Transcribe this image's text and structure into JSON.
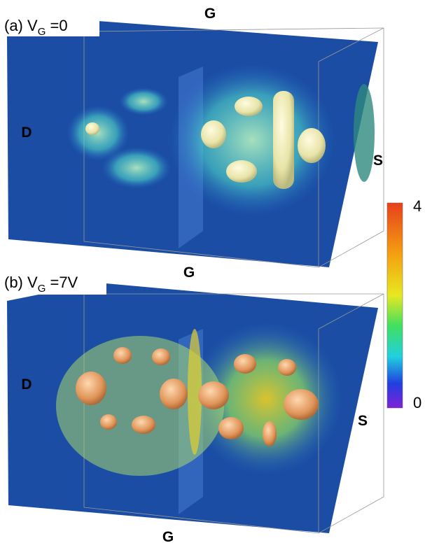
{
  "panels": [
    {
      "label": {
        "prefix": "(a) V",
        "sub": "G",
        "suffix": " =0"
      },
      "top": "G",
      "left": "D",
      "right": "S",
      "bottom": "G"
    },
    {
      "label": {
        "prefix": "(b) V",
        "sub": "G",
        "suffix": " =7V"
      },
      "left": "D",
      "right": "S",
      "bottom": "G"
    }
  ],
  "colorbar": {
    "ticks": [
      0,
      4
    ]
  }
}
